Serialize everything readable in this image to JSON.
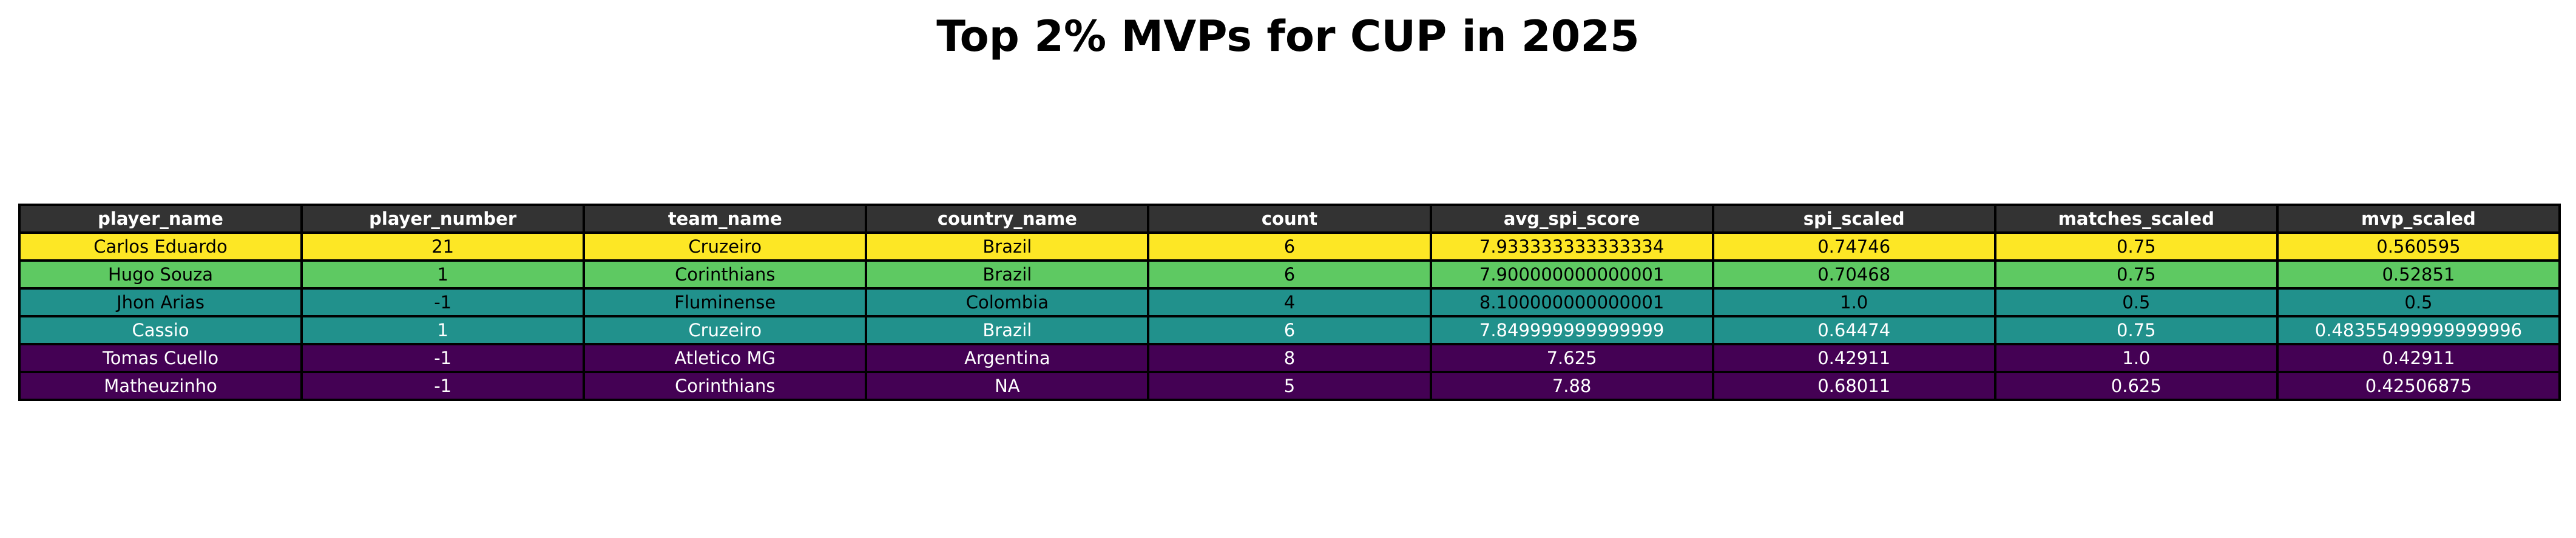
{
  "chart_data": {
    "type": "table",
    "title": "Top 2% MVPs for CUP in 2025",
    "columns": [
      "player_name",
      "player_number",
      "team_name",
      "country_name",
      "count",
      "avg_spi_score",
      "spi_scaled",
      "matches_scaled",
      "mvp_scaled"
    ],
    "rows": [
      {
        "cells": [
          "Carlos Eduardo",
          "21",
          "Cruzeiro",
          "Brazil",
          "6",
          "7.933333333333334",
          "0.74746",
          "0.75",
          "0.560595"
        ],
        "bg": "#fde725",
        "fg": "#000000"
      },
      {
        "cells": [
          "Hugo Souza",
          "1",
          "Corinthians",
          "Brazil",
          "6",
          "7.900000000000001",
          "0.70468",
          "0.75",
          "0.52851"
        ],
        "bg": "#5ec962",
        "fg": "#000000"
      },
      {
        "cells": [
          "Jhon Arias",
          "-1",
          "Fluminense",
          "Colombia",
          "4",
          "8.100000000000001",
          "1.0",
          "0.5",
          "0.5"
        ],
        "bg": "#21918c",
        "fg": "#000000"
      },
      {
        "cells": [
          "Cassio",
          "1",
          "Cruzeiro",
          "Brazil",
          "6",
          "7.849999999999999",
          "0.64474",
          "0.75",
          "0.48355499999999996"
        ],
        "bg": "#21918c",
        "fg": "#ffffff"
      },
      {
        "cells": [
          "Tomas Cuello",
          "-1",
          "Atletico MG",
          "Argentina",
          "8",
          "7.625",
          "0.42911",
          "1.0",
          "0.42911"
        ],
        "bg": "#440154",
        "fg": "#ffffff"
      },
      {
        "cells": [
          "Matheuzinho",
          "-1",
          "Corinthians",
          "NA",
          "5",
          "7.88",
          "0.68011",
          "0.625",
          "0.42506875"
        ],
        "bg": "#440154",
        "fg": "#ffffff"
      }
    ]
  }
}
